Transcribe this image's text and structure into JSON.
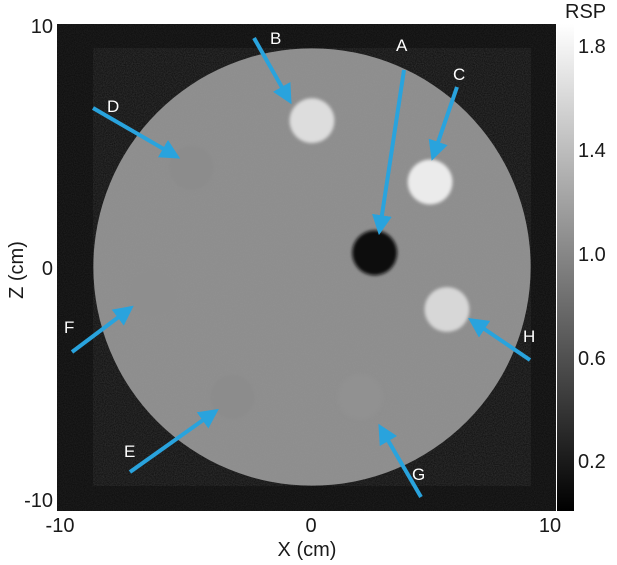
{
  "image": {
    "type": "ct-phantom-reconstruction",
    "description_visible": "circular phantom with labeled inserts",
    "background_color": "#0b0b0b",
    "phantom_color": "#8c8c8c",
    "arrow_color": "#29a3dd"
  },
  "axes": {
    "xlabel": "X (cm)",
    "ylabel": "Z (cm)",
    "xlim": [
      -10,
      10
    ],
    "ylim": [
      -10,
      10
    ],
    "xticks": [
      "-10",
      "0",
      "10"
    ],
    "yticks": [
      "10",
      "0",
      "-10"
    ]
  },
  "colorbar": {
    "title": "RSP",
    "ticks": [
      "1.8",
      "1.4",
      "1.0",
      "0.6",
      "0.2"
    ],
    "range": [
      0.0,
      1.9
    ]
  },
  "phantom": {
    "center_cm": [
      0,
      0
    ],
    "radius_cm": 9.5
  },
  "inserts": [
    {
      "label": "B",
      "center_cm": [
        0,
        6.2
      ],
      "radius_cm": 1.0,
      "rsp": 1.65
    },
    {
      "label": "C",
      "center_cm": [
        4.9,
        3.6
      ],
      "radius_cm": 1.0,
      "rsp": 1.75
    },
    {
      "label": "A",
      "center_cm": [
        2.6,
        0.6
      ],
      "radius_cm": 1.0,
      "rsp": 0.1
    },
    {
      "label": "H",
      "center_cm": [
        5.6,
        -1.8
      ],
      "radius_cm": 1.0,
      "rsp": 1.6
    },
    {
      "label": "D",
      "center_cm": [
        -5.0,
        4.2
      ],
      "radius_cm": 1.0,
      "rsp": 1.04
    },
    {
      "label": "F",
      "center_cm": [
        -6.6,
        -1.1
      ],
      "radius_cm": 1.0,
      "rsp": 1.06
    },
    {
      "label": "E",
      "center_cm": [
        -3.3,
        -5.5
      ],
      "radius_cm": 1.0,
      "rsp": 1.04
    },
    {
      "label": "G",
      "center_cm": [
        2.0,
        -5.5
      ],
      "radius_cm": 1.0,
      "rsp": 1.08
    }
  ],
  "labels": [
    "A",
    "B",
    "C",
    "D",
    "E",
    "F",
    "G",
    "H"
  ]
}
